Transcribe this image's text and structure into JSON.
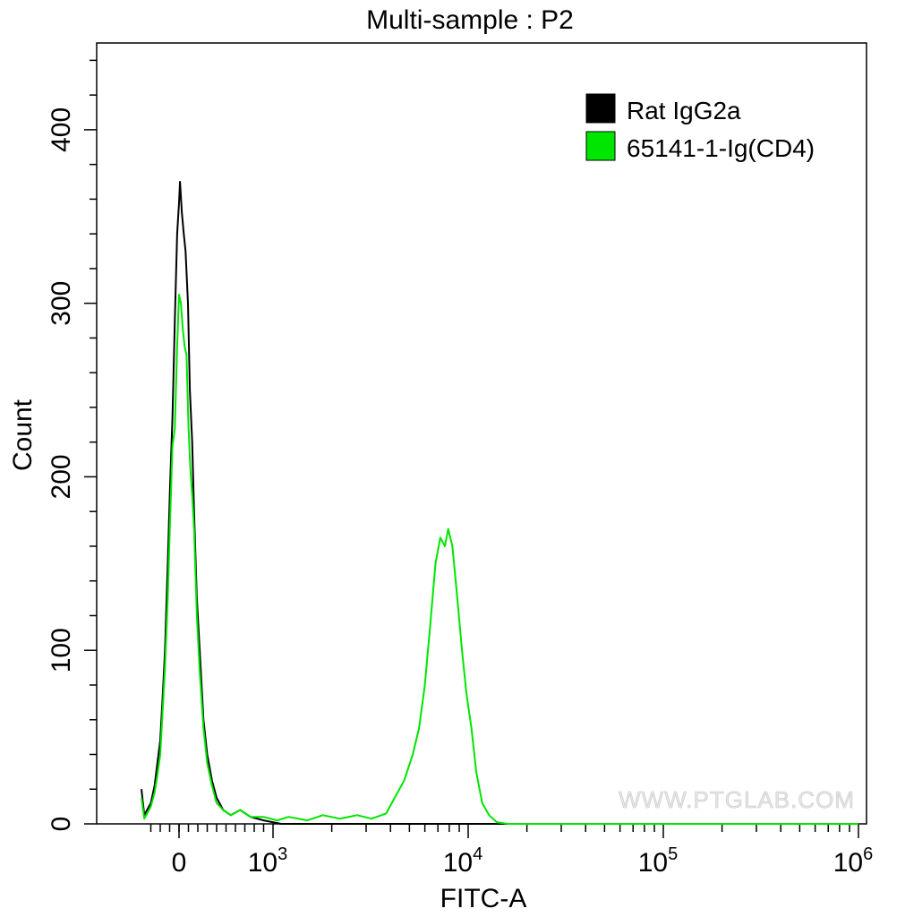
{
  "chart_data": {
    "type": "line",
    "title": "Multi-sample : P2",
    "xlabel": "FITC-A",
    "ylabel": "Count",
    "x_scale": "biexponential",
    "xlim": [
      -400,
      1000000
    ],
    "ylim": [
      0,
      450
    ],
    "y_ticks": [
      0,
      100,
      200,
      300,
      400
    ],
    "x_ticks": [
      {
        "value": 0,
        "base": "0",
        "exp": ""
      },
      {
        "value": 1000,
        "base": "10",
        "exp": "3"
      },
      {
        "value": 10000,
        "base": "10",
        "exp": "4"
      },
      {
        "value": 100000,
        "base": "10",
        "exp": "5"
      },
      {
        "value": 1000000,
        "base": "10",
        "exp": "6"
      }
    ],
    "legend": {
      "position": "top-right"
    },
    "series": [
      {
        "name": "Rat IgG2a",
        "color": "#000000",
        "points": [
          [
            -400,
            20
          ],
          [
            -370,
            5
          ],
          [
            -340,
            8
          ],
          [
            -300,
            12
          ],
          [
            -260,
            22
          ],
          [
            -230,
            35
          ],
          [
            -200,
            48
          ],
          [
            -170,
            78
          ],
          [
            -150,
            100
          ],
          [
            -120,
            150
          ],
          [
            -95,
            195
          ],
          [
            -70,
            235
          ],
          [
            -45,
            290
          ],
          [
            -20,
            340
          ],
          [
            0,
            358
          ],
          [
            10,
            370
          ],
          [
            30,
            352
          ],
          [
            50,
            340
          ],
          [
            70,
            330
          ],
          [
            95,
            300
          ],
          [
            115,
            250
          ],
          [
            140,
            220
          ],
          [
            160,
            180
          ],
          [
            190,
            130
          ],
          [
            220,
            100
          ],
          [
            260,
            60
          ],
          [
            300,
            40
          ],
          [
            350,
            25
          ],
          [
            400,
            15
          ],
          [
            470,
            8
          ],
          [
            550,
            5
          ],
          [
            650,
            8
          ],
          [
            760,
            4
          ],
          [
            900,
            2
          ],
          [
            1100,
            0
          ],
          [
            1500,
            0
          ],
          [
            3000,
            0
          ],
          [
            1000000,
            0
          ]
        ]
      },
      {
        "name": "65141-1-Ig(CD4)",
        "color": "#00e600",
        "points": [
          [
            -400,
            15
          ],
          [
            -370,
            3
          ],
          [
            -340,
            6
          ],
          [
            -300,
            10
          ],
          [
            -260,
            18
          ],
          [
            -230,
            28
          ],
          [
            -200,
            40
          ],
          [
            -170,
            70
          ],
          [
            -150,
            90
          ],
          [
            -120,
            130
          ],
          [
            -95,
            175
          ],
          [
            -70,
            218
          ],
          [
            -45,
            228
          ],
          [
            -20,
            275
          ],
          [
            0,
            305
          ],
          [
            20,
            300
          ],
          [
            40,
            285
          ],
          [
            60,
            275
          ],
          [
            80,
            270
          ],
          [
            100,
            230
          ],
          [
            120,
            205
          ],
          [
            140,
            190
          ],
          [
            160,
            170
          ],
          [
            190,
            120
          ],
          [
            220,
            88
          ],
          [
            260,
            55
          ],
          [
            300,
            35
          ],
          [
            350,
            22
          ],
          [
            400,
            12
          ],
          [
            470,
            8
          ],
          [
            550,
            5
          ],
          [
            650,
            8
          ],
          [
            760,
            4
          ],
          [
            900,
            4
          ],
          [
            1050,
            2
          ],
          [
            1200,
            4
          ],
          [
            1500,
            2
          ],
          [
            1800,
            5
          ],
          [
            2200,
            3
          ],
          [
            2700,
            5
          ],
          [
            3200,
            3
          ],
          [
            3800,
            6
          ],
          [
            4200,
            15
          ],
          [
            4700,
            25
          ],
          [
            5200,
            40
          ],
          [
            5600,
            55
          ],
          [
            6000,
            80
          ],
          [
            6400,
            115
          ],
          [
            6800,
            150
          ],
          [
            7200,
            165
          ],
          [
            7600,
            160
          ],
          [
            7900,
            170
          ],
          [
            8300,
            160
          ],
          [
            8800,
            130
          ],
          [
            9300,
            100
          ],
          [
            9800,
            75
          ],
          [
            10400,
            55
          ],
          [
            11000,
            30
          ],
          [
            11800,
            12
          ],
          [
            12800,
            5
          ],
          [
            14000,
            1
          ],
          [
            16000,
            0
          ],
          [
            1000000,
            0
          ]
        ]
      }
    ],
    "watermark": "WWW.PTGLAB.COM"
  }
}
